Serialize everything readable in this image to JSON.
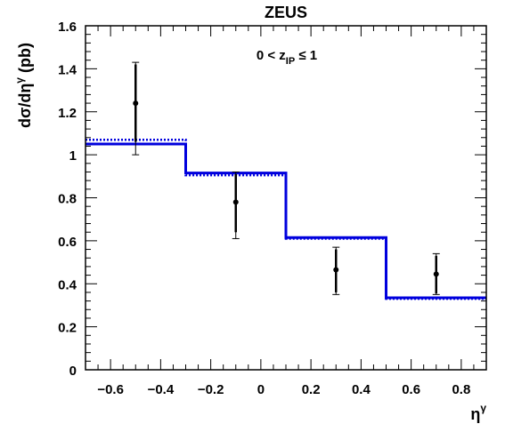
{
  "chart_data": {
    "type": "step",
    "title": "ZEUS",
    "annotation": {
      "main": "0 < z",
      "sub": "IP",
      "tail": " ≤ 1"
    },
    "ylabel": {
      "main": "dσ/dη",
      "sup": "γ",
      "tail": " (pb)"
    },
    "xlabel": {
      "main": "η",
      "sup": "γ"
    },
    "xlim": [
      -0.7,
      0.9
    ],
    "ylim": [
      0,
      1.6
    ],
    "xticks": [
      -0.6,
      -0.4,
      -0.2,
      0,
      0.2,
      0.4,
      0.6,
      0.8
    ],
    "xtick_labels": [
      "−0.6",
      "−0.4",
      "−0.2",
      "0",
      "0.2",
      "0.4",
      "0.6",
      "0.8"
    ],
    "yticks": [
      0,
      0.2,
      0.4,
      0.6,
      0.8,
      1,
      1.2,
      1.4,
      1.6
    ],
    "ytick_labels": [
      "0",
      "0.2",
      "0.4",
      "0.6",
      "0.8",
      "1",
      "1.2",
      "1.4",
      "1.6"
    ],
    "bin_edges": [
      -0.7,
      -0.3,
      0.1,
      0.5,
      0.9
    ],
    "points": [
      {
        "x": -0.5,
        "y": 1.24,
        "stat_lo": 1.06,
        "stat_hi": 1.42,
        "sys_lo": 1.0,
        "sys_hi": 1.43
      },
      {
        "x": -0.1,
        "y": 0.78,
        "stat_lo": 0.64,
        "stat_hi": 0.91,
        "sys_lo": 0.61,
        "sys_hi": 0.92
      },
      {
        "x": 0.3,
        "y": 0.465,
        "stat_lo": 0.36,
        "stat_hi": 0.56,
        "sys_lo": 0.35,
        "sys_hi": 0.57
      },
      {
        "x": 0.7,
        "y": 0.445,
        "stat_lo": 0.355,
        "stat_hi": 0.53,
        "sys_lo": 0.35,
        "sys_hi": 0.54
      }
    ],
    "series": [
      {
        "style": "solid",
        "values": [
          1.05,
          0.915,
          0.615,
          0.335
        ]
      },
      {
        "style": "dotted",
        "values": [
          1.07,
          0.905,
          0.61,
          0.33
        ]
      }
    ],
    "colors": {
      "theory": "#0000dd",
      "data": "#000000"
    }
  }
}
